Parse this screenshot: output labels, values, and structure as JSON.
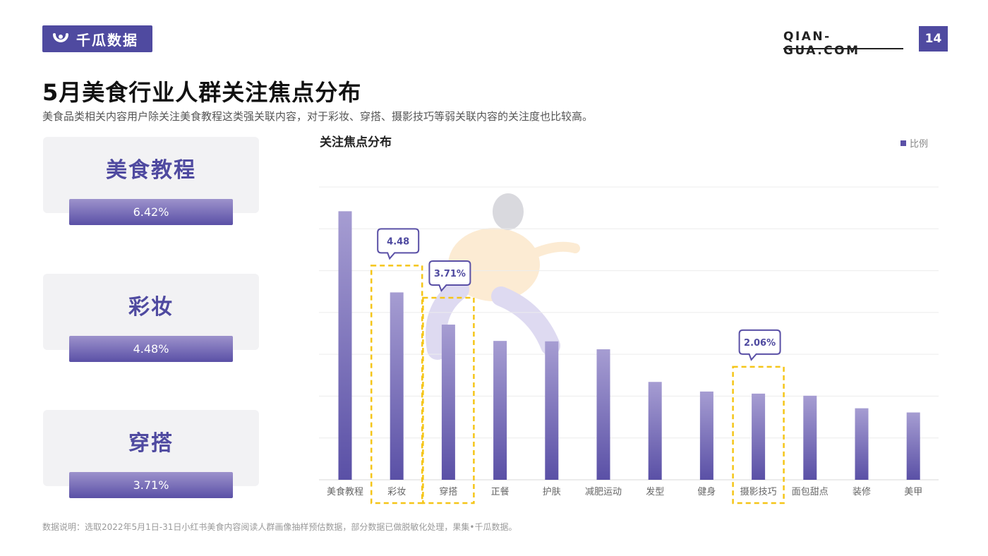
{
  "header": {
    "logo_text": "千瓜数据",
    "site": "QIAN-GUA.COM",
    "page_number": "14"
  },
  "title": "5月美食行业人群关注焦点分布",
  "subtitle": "美食品类相关内容用户除关注美食教程这类强关联内容，对于彩妆、穿搭、摄影技巧等弱关联内容的关注度也比较高。",
  "highlights": [
    {
      "label": "美食教程",
      "value": "6.42%"
    },
    {
      "label": "彩妆",
      "value": "4.48%"
    },
    {
      "label": "穿搭",
      "value": "3.71%"
    }
  ],
  "colors": {
    "brand": "#4f4aa0",
    "bar_top": "#9d92cc",
    "bar_bottom": "#5a50a6",
    "highlight_dash": "#f5c518"
  },
  "chart_data": {
    "type": "bar",
    "title": "关注焦点分布",
    "legend": {
      "label": "比例",
      "position": "top-right"
    },
    "categories": [
      "美食教程",
      "彩妆",
      "穿搭",
      "正餐",
      "护肤",
      "减肥运动",
      "发型",
      "健身",
      "摄影技巧",
      "面包甜点",
      "装修",
      "美甲"
    ],
    "series": [
      {
        "name": "比例",
        "values": [
          6.42,
          4.48,
          3.71,
          3.32,
          3.31,
          3.12,
          2.34,
          2.11,
          2.06,
          2.01,
          1.71,
          1.61
        ]
      }
    ],
    "ylim": [
      0,
      7
    ],
    "grid": true,
    "annotations": [
      {
        "category": "彩妆",
        "text": "4.48"
      },
      {
        "category": "穿搭",
        "text": "3.71%"
      },
      {
        "category": "摄影技巧",
        "text": "2.06%"
      }
    ],
    "highlighted_categories": [
      "彩妆",
      "穿搭",
      "摄影技巧"
    ]
  },
  "footnote": "数据说明：选取2022年5月1日-31日小红书美食内容阅读人群画像抽样预估数据，部分数据已做脱敏化处理，果集•千瓜数据。"
}
